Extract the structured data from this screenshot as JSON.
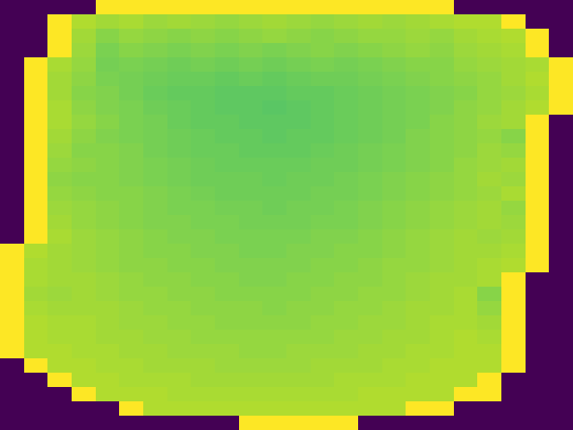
{
  "chart_data": {
    "type": "heatmap",
    "tick_labels": false,
    "color_range": [
      0,
      100
    ],
    "xlim": [
      0,
      24
    ],
    "ylim": [
      30,
      0
    ],
    "cells": [
      [
        0,
        0,
        0,
        0,
        100,
        100,
        100,
        100,
        100,
        100,
        100,
        100,
        100,
        100,
        100,
        100,
        100,
        100,
        100,
        0,
        0,
        0,
        0,
        0
      ],
      [
        0,
        0,
        100,
        88,
        86,
        87,
        85,
        86,
        85,
        84,
        85,
        86,
        85,
        84,
        85,
        86,
        85,
        86,
        87,
        88,
        88,
        100,
        0,
        0
      ],
      [
        0,
        0,
        100,
        86,
        82,
        84,
        83,
        82,
        83,
        82,
        83,
        84,
        83,
        82,
        83,
        84,
        84,
        85,
        84,
        86,
        87,
        88,
        100,
        0
      ],
      [
        0,
        0,
        100,
        85,
        80,
        82,
        81,
        80,
        81,
        80,
        81,
        80,
        81,
        82,
        81,
        82,
        83,
        84,
        83,
        85,
        86,
        87,
        100,
        0
      ],
      [
        0,
        100,
        87,
        84,
        79,
        80,
        79,
        78,
        79,
        78,
        79,
        78,
        79,
        80,
        79,
        80,
        81,
        82,
        82,
        84,
        85,
        86,
        87,
        100
      ],
      [
        0,
        100,
        86,
        83,
        80,
        79,
        78,
        77,
        77,
        76,
        77,
        76,
        77,
        78,
        78,
        79,
        80,
        81,
        82,
        83,
        84,
        86,
        88,
        100
      ],
      [
        0,
        100,
        86,
        82,
        81,
        79,
        77,
        76,
        76,
        75,
        75,
        75,
        76,
        76,
        77,
        78,
        79,
        80,
        81,
        82,
        84,
        85,
        87,
        100
      ],
      [
        0,
        100,
        87,
        83,
        81,
        80,
        78,
        77,
        76,
        75,
        75,
        74,
        75,
        76,
        77,
        78,
        79,
        80,
        81,
        83,
        84,
        86,
        88,
        100
      ],
      [
        0,
        100,
        87,
        84,
        82,
        80,
        79,
        77,
        76,
        76,
        75,
        75,
        75,
        76,
        77,
        78,
        79,
        80,
        82,
        83,
        85,
        86,
        100,
        0
      ],
      [
        0,
        100,
        86,
        83,
        81,
        80,
        79,
        78,
        77,
        76,
        76,
        75,
        76,
        76,
        77,
        78,
        79,
        81,
        82,
        83,
        84,
        82,
        100,
        0
      ],
      [
        0,
        100,
        85,
        82,
        82,
        81,
        79,
        78,
        77,
        77,
        76,
        76,
        76,
        77,
        78,
        79,
        80,
        81,
        82,
        83,
        85,
        84,
        100,
        0
      ],
      [
        0,
        100,
        84,
        83,
        82,
        81,
        80,
        79,
        78,
        77,
        77,
        77,
        77,
        78,
        78,
        79,
        80,
        81,
        82,
        84,
        85,
        86,
        100,
        0
      ],
      [
        0,
        100,
        83,
        82,
        82,
        81,
        80,
        79,
        78,
        78,
        78,
        77,
        78,
        78,
        79,
        80,
        81,
        82,
        83,
        84,
        86,
        85,
        100,
        0
      ],
      [
        0,
        100,
        84,
        83,
        82,
        82,
        81,
        80,
        79,
        78,
        78,
        78,
        78,
        79,
        79,
        80,
        81,
        82,
        83,
        84,
        85,
        87,
        100,
        0
      ],
      [
        0,
        100,
        85,
        84,
        83,
        82,
        81,
        80,
        80,
        79,
        79,
        78,
        79,
        79,
        80,
        81,
        82,
        83,
        84,
        85,
        86,
        84,
        100,
        0
      ],
      [
        0,
        100,
        86,
        84,
        83,
        82,
        81,
        81,
        80,
        80,
        79,
        79,
        79,
        80,
        80,
        81,
        82,
        83,
        84,
        85,
        86,
        85,
        100,
        0
      ],
      [
        0,
        100,
        87,
        85,
        84,
        83,
        82,
        81,
        81,
        80,
        80,
        80,
        80,
        81,
        81,
        82,
        83,
        84,
        85,
        86,
        85,
        86,
        100,
        0
      ],
      [
        100,
        88,
        86,
        85,
        84,
        83,
        82,
        82,
        81,
        81,
        80,
        80,
        81,
        81,
        82,
        82,
        83,
        84,
        85,
        86,
        86,
        87,
        100,
        0
      ],
      [
        100,
        87,
        86,
        85,
        84,
        83,
        83,
        82,
        82,
        81,
        81,
        81,
        81,
        82,
        82,
        83,
        84,
        84,
        85,
        86,
        87,
        88,
        100,
        0
      ],
      [
        100,
        87,
        86,
        86,
        85,
        84,
        83,
        83,
        82,
        82,
        81,
        81,
        82,
        82,
        83,
        83,
        84,
        85,
        86,
        86,
        87,
        100,
        0,
        0
      ],
      [
        100,
        86,
        85,
        86,
        85,
        84,
        84,
        83,
        83,
        82,
        82,
        82,
        82,
        83,
        83,
        84,
        84,
        85,
        86,
        87,
        82,
        100,
        0,
        0
      ],
      [
        100,
        87,
        86,
        86,
        86,
        85,
        84,
        84,
        83,
        83,
        83,
        82,
        83,
        83,
        84,
        84,
        85,
        86,
        86,
        87,
        84,
        100,
        0,
        0
      ],
      [
        100,
        88,
        87,
        87,
        86,
        85,
        85,
        84,
        84,
        83,
        83,
        83,
        83,
        84,
        84,
        85,
        85,
        86,
        87,
        87,
        86,
        100,
        0,
        0
      ],
      [
        100,
        88,
        87,
        87,
        86,
        86,
        85,
        85,
        84,
        84,
        84,
        84,
        84,
        84,
        85,
        85,
        86,
        86,
        87,
        88,
        87,
        100,
        0,
        0
      ],
      [
        100,
        88,
        88,
        87,
        87,
        86,
        86,
        85,
        85,
        85,
        84,
        84,
        85,
        85,
        85,
        86,
        86,
        87,
        87,
        88,
        88,
        100,
        0,
        0
      ],
      [
        0,
        100,
        88,
        88,
        87,
        87,
        86,
        86,
        86,
        85,
        85,
        85,
        85,
        86,
        86,
        86,
        87,
        87,
        88,
        88,
        88,
        100,
        0,
        0
      ],
      [
        0,
        0,
        100,
        88,
        88,
        87,
        87,
        87,
        86,
        86,
        86,
        86,
        86,
        86,
        87,
        87,
        87,
        88,
        88,
        88,
        100,
        0,
        0,
        0
      ],
      [
        0,
        0,
        0,
        100,
        88,
        88,
        88,
        87,
        87,
        87,
        87,
        87,
        87,
        87,
        87,
        88,
        88,
        88,
        88,
        100,
        100,
        0,
        0,
        0
      ],
      [
        0,
        0,
        0,
        0,
        0,
        100,
        88,
        88,
        88,
        88,
        88,
        88,
        88,
        88,
        88,
        88,
        88,
        100,
        100,
        0,
        0,
        0,
        0,
        0
      ],
      [
        0,
        0,
        0,
        0,
        0,
        0,
        0,
        0,
        0,
        0,
        100,
        100,
        100,
        100,
        100,
        0,
        0,
        0,
        0,
        0,
        0,
        0,
        0,
        0
      ]
    ]
  }
}
